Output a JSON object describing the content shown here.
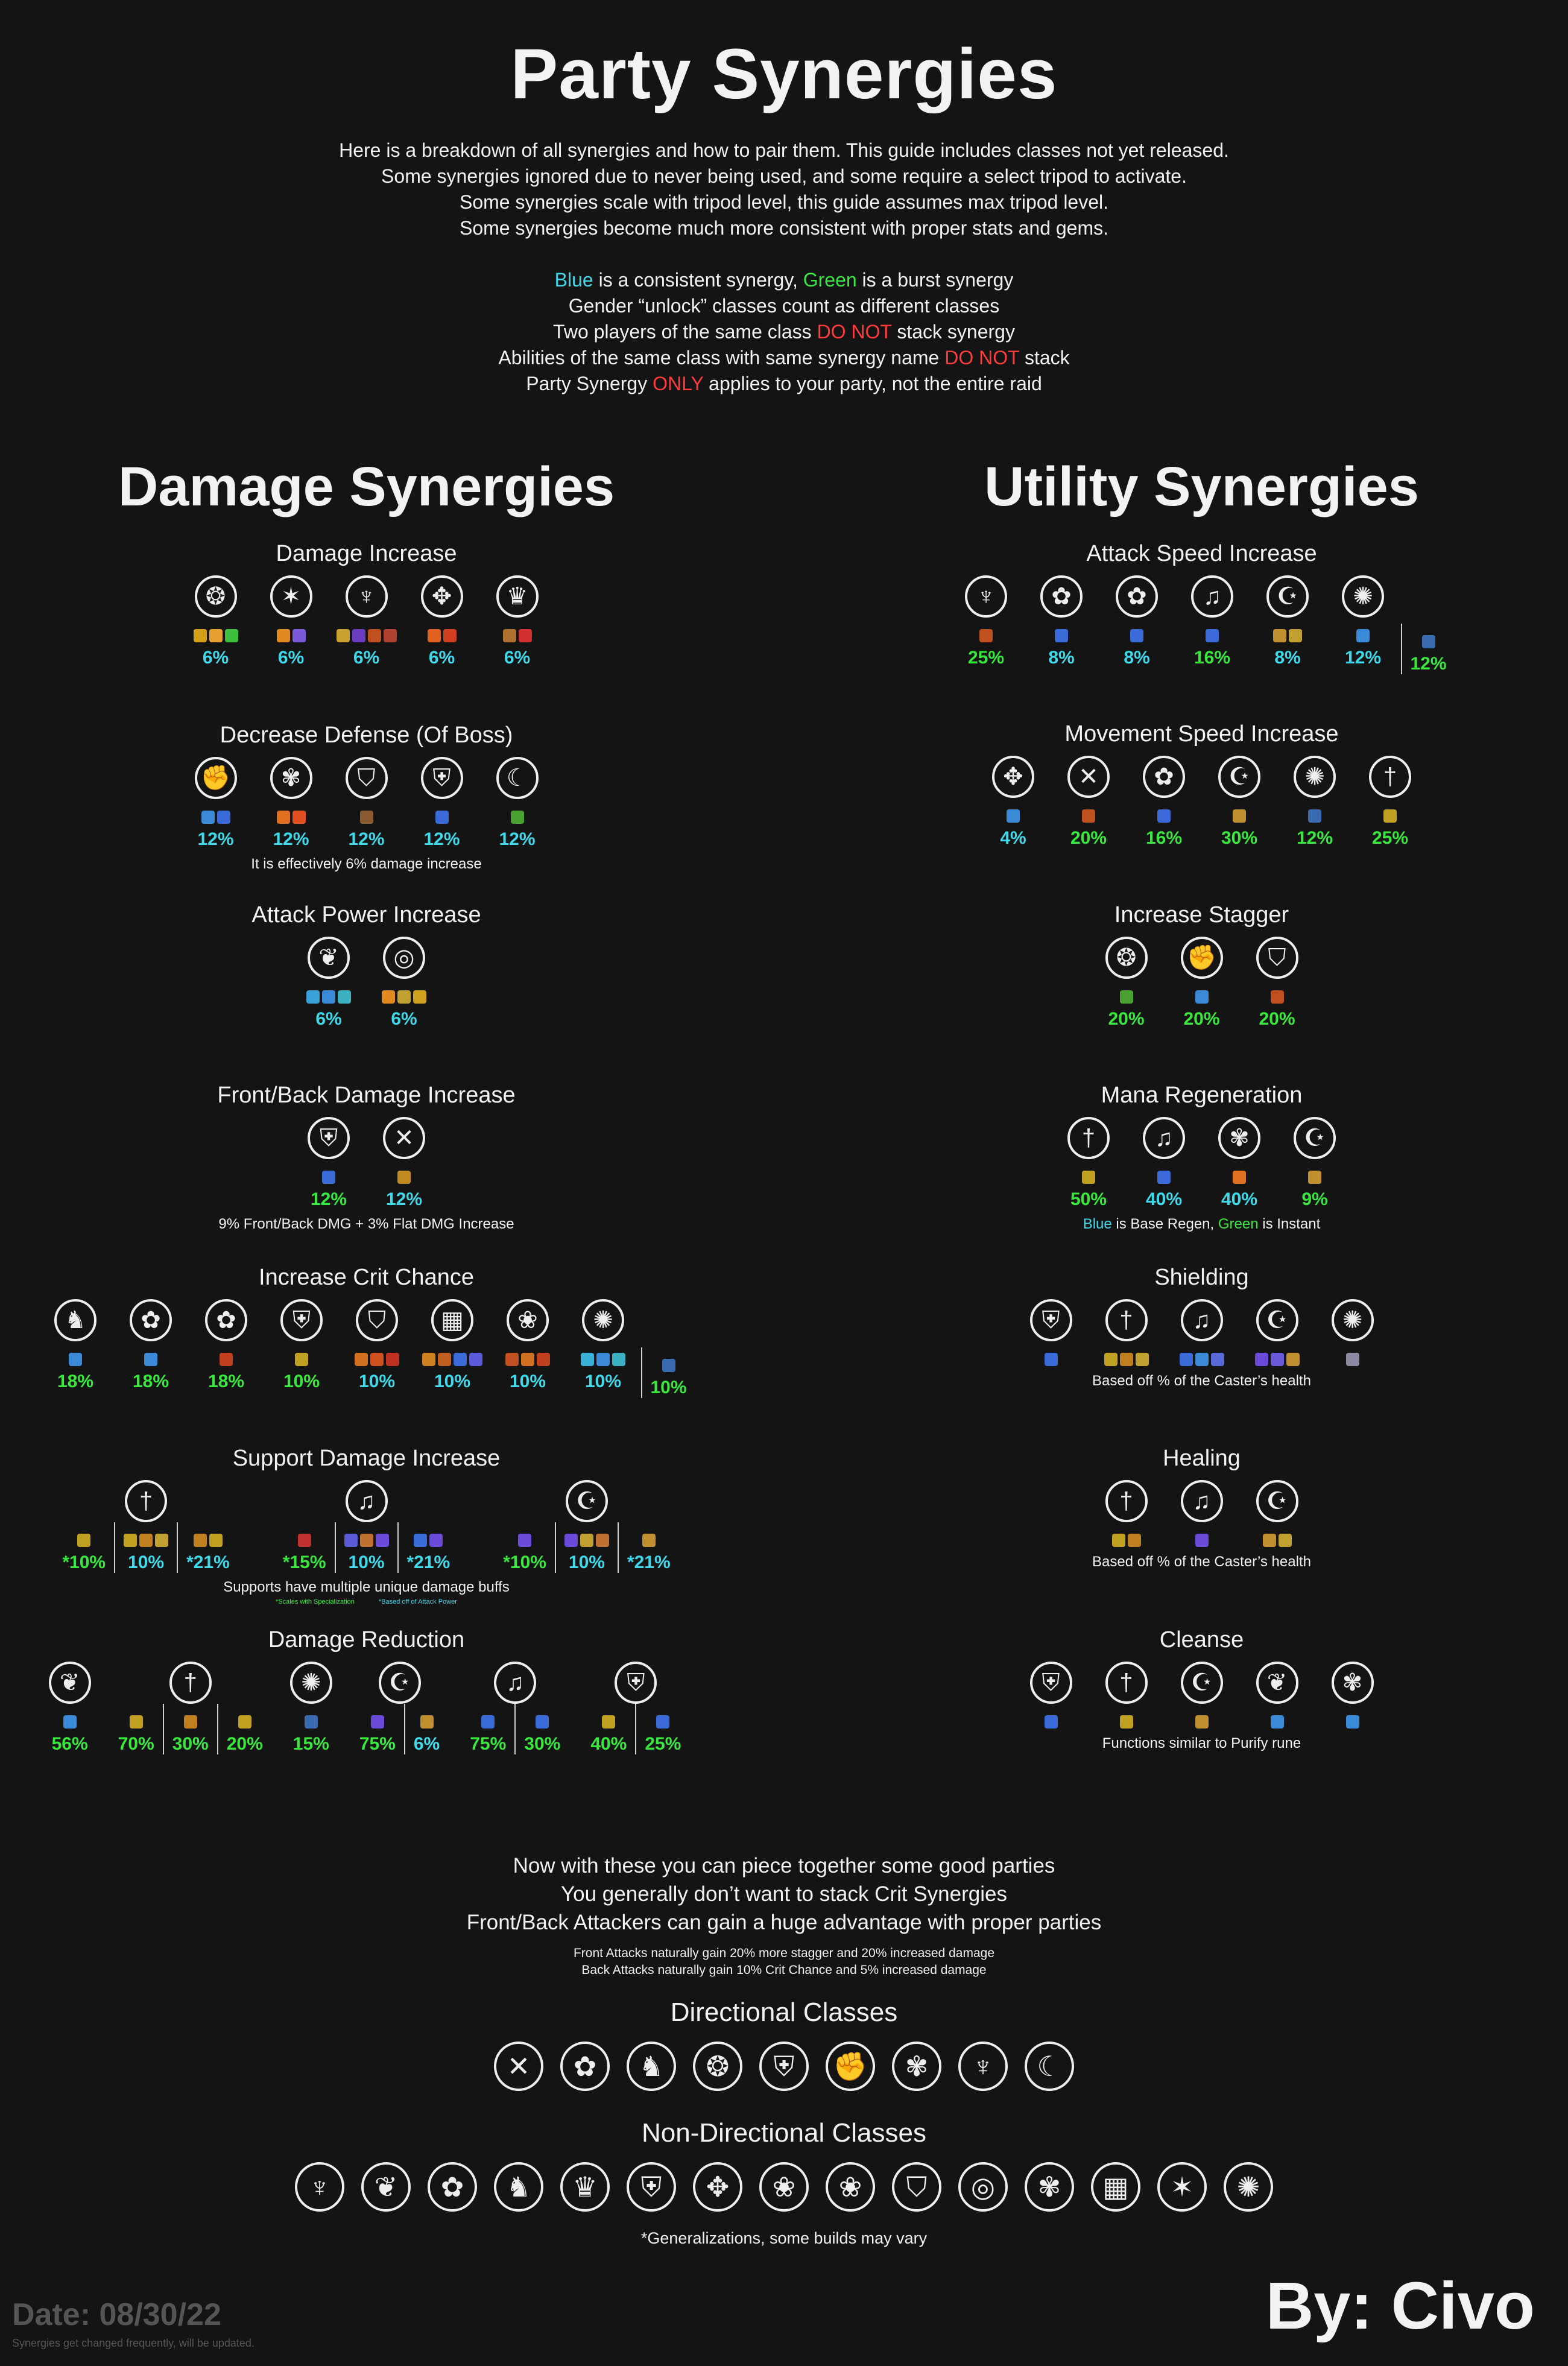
{
  "title": "Party Synergies",
  "intro_lines": [
    "Here is a breakdown of all synergies and how to pair them. This guide includes classes not yet released.",
    "Some synergies ignored due to never being used, and some require a select tripod to activate.",
    "Some synergies scale with tripod level, this guide assumes max tripod level.",
    "Some synergies become much more consistent with proper stats and gems."
  ],
  "legend": {
    "blue_word": "Blue",
    "blue_rest": " is a consistent synergy, ",
    "green_word": "Green",
    "green_rest": " is a burst synergy",
    "line2": "Gender “unlock” classes count as different classes",
    "line3_a": "Two players of the same class ",
    "line3_red": "DO NOT",
    "line3_b": " stack synergy",
    "line4_a": "Abilities of the same class with same synergy name ",
    "line4_red": "DO NOT",
    "line4_b": " stack",
    "line5_a": "Party Synergy ",
    "line5_red": "ONLY",
    "line5_b": " applies to your party, not the entire raid"
  },
  "colors": {
    "blue": "#3ed9ea",
    "green": "#39e83d",
    "red": "#ff3b3b",
    "background": "#141414"
  },
  "damage_heading": "Damage Synergies",
  "utility_heading": "Utility Synergies",
  "sections": {
    "dmg_inc": {
      "title": "Damage Increase",
      "items": [
        {
          "icon": "dragon-emblem-icon",
          "pct": "6%",
          "c": "blue",
          "sq": [
            "#d4a017",
            "#e8a030",
            "#3cbf3c"
          ]
        },
        {
          "icon": "star-sigil-icon",
          "pct": "6%",
          "c": "blue",
          "sq": [
            "#e08a20",
            "#7a5ad8"
          ]
        },
        {
          "icon": "bat-wing-icon",
          "pct": "6%",
          "c": "blue",
          "sq": [
            "#c9a030",
            "#6a3cc0",
            "#c05020",
            "#b04030"
          ]
        },
        {
          "icon": "winged-blade-icon",
          "pct": "6%",
          "c": "blue",
          "sq": [
            "#e06020",
            "#d04020"
          ]
        },
        {
          "icon": "spire-crown-icon",
          "pct": "6%",
          "c": "blue",
          "sq": [
            "#b07030",
            "#d03030"
          ]
        }
      ]
    },
    "dec_def": {
      "title": "Decrease Defense (Of Boss)",
      "note": "It is effectively 6% damage increase",
      "items": [
        {
          "icon": "gauntlet-icon",
          "pct": "12%",
          "c": "blue",
          "sq": [
            "#3a8ad8",
            "#3a6ad8"
          ]
        },
        {
          "icon": "ornate-mask-icon",
          "pct": "12%",
          "c": "blue",
          "sq": [
            "#e07020",
            "#e05020"
          ]
        },
        {
          "icon": "horned-shield-icon",
          "pct": "12%",
          "c": "blue",
          "sq": [
            "#8a5a30"
          ]
        },
        {
          "icon": "winged-shield-icon",
          "pct": "12%",
          "c": "blue",
          "sq": [
            "#3a6ad8"
          ]
        },
        {
          "icon": "scythe-icon",
          "pct": "12%",
          "c": "blue",
          "sq": [
            "#4aa030"
          ]
        }
      ]
    },
    "atk_pow": {
      "title": "Attack Power Increase",
      "items": [
        {
          "icon": "leaf-swirl-icon",
          "pct": "6%",
          "c": "blue",
          "sq": [
            "#3aa0d8",
            "#3a8ad8",
            "#3ab0c0"
          ]
        },
        {
          "icon": "spiral-arc-icon",
          "pct": "6%",
          "c": "blue",
          "sq": [
            "#e08a20",
            "#c0a030",
            "#d0a020"
          ]
        }
      ]
    },
    "front_back": {
      "title": "Front/Back Damage Increase",
      "note": "9% Front/Back DMG + 3% Flat DMG Increase",
      "items": [
        {
          "icon": "winged-shield-icon",
          "pct": "12%",
          "c": "green",
          "sq": [
            "#3a6ad8"
          ]
        },
        {
          "icon": "crossed-blades-icon",
          "pct": "12%",
          "c": "blue",
          "sq": [
            "#c08a20"
          ]
        }
      ]
    },
    "crit": {
      "title": "Increase Crit Chance",
      "items": [
        {
          "icon": "wolf-head-icon",
          "pct": "18%",
          "c": "green",
          "sq": [
            "#3a8ad8"
          ]
        },
        {
          "icon": "rose-medallion-icon",
          "pct": "18%",
          "c": "green",
          "sq": [
            "#3a8ad8"
          ]
        },
        {
          "icon": "rose-medallion-icon",
          "pct": "18%",
          "c": "green",
          "sq": [
            "#c04020"
          ]
        },
        {
          "icon": "winged-shield-icon",
          "pct": "10%",
          "c": "green",
          "sq": [
            "#c0a020"
          ]
        },
        {
          "icon": "horned-shield-icon",
          "pct": "10%",
          "c": "blue",
          "sq": [
            "#d07020",
            "#d05020",
            "#c03020"
          ]
        },
        {
          "icon": "checker-shield-icon",
          "pct": "10%",
          "c": "blue",
          "sq": [
            "#d08020",
            "#c06020",
            "#3a6ad8",
            "#5a5ad8"
          ]
        },
        {
          "icon": "lotus-crest-icon",
          "pct": "10%",
          "c": "blue",
          "sq": [
            "#c05020",
            "#d07020",
            "#c04020"
          ]
        },
        {
          "icon": "tornado-icon",
          "pct": "10%",
          "c": "blue",
          "sq": [
            "#3ab0d8",
            "#3a8ad8",
            "#3ab0c0"
          ]
        },
        {
          "icon": "tornado-icon",
          "pct": "10%",
          "c": "green",
          "sq": [
            "#3a6ab0"
          ],
          "sep": true,
          "noicon": true
        }
      ]
    },
    "support_dmg": {
      "title": "Support Damage Increase",
      "note": "Supports have multiple unique damage buffs",
      "tiny_green": "*Scales with Specialization",
      "tiny_blue": "*Based off of Attack Power",
      "groups": [
        {
          "icon": "winged-sword-icon",
          "subs": [
            {
              "pct": "*10%",
              "c": "green",
              "sq": [
                "#c0a020"
              ]
            },
            {
              "pct": "10%",
              "c": "blue",
              "sq": [
                "#c0a020",
                "#c08020",
                "#c0a030"
              ]
            },
            {
              "pct": "*21%",
              "c": "blue",
              "sq": [
                "#c08020",
                "#c0a020"
              ]
            }
          ]
        },
        {
          "icon": "lyre-icon",
          "subs": [
            {
              "pct": "*15%",
              "c": "green",
              "sq": [
                "#c03030"
              ]
            },
            {
              "pct": "10%",
              "c": "blue",
              "sq": [
                "#5a5ad8",
                "#c07030",
                "#6a4ad8"
              ]
            },
            {
              "pct": "*21%",
              "c": "blue",
              "sq": [
                "#3a6ad8",
                "#6a4ad8"
              ]
            }
          ]
        },
        {
          "icon": "crescent-q-icon",
          "subs": [
            {
              "pct": "*10%",
              "c": "green",
              "sq": [
                "#6a4ad8"
              ]
            },
            {
              "pct": "10%",
              "c": "blue",
              "sq": [
                "#6a4ad8",
                "#c0a030",
                "#c07030"
              ]
            },
            {
              "pct": "*21%",
              "c": "blue",
              "sq": [
                "#c09030"
              ]
            }
          ]
        }
      ]
    },
    "dmg_red": {
      "title": "Damage Reduction",
      "groups": [
        {
          "icon": "leaf-swirl-icon",
          "subs": [
            {
              "pct": "56%",
              "c": "green",
              "sq": [
                "#3a8ad8"
              ]
            }
          ]
        },
        {
          "icon": "winged-sword-icon",
          "subs": [
            {
              "pct": "70%",
              "c": "green",
              "sq": [
                "#c0a020"
              ]
            },
            {
              "pct": "30%",
              "c": "green",
              "sq": [
                "#c08020"
              ]
            },
            {
              "pct": "20%",
              "c": "green",
              "sq": [
                "#c0a020"
              ]
            }
          ]
        },
        {
          "icon": "tornado-icon",
          "subs": [
            {
              "pct": "15%",
              "c": "green",
              "sq": [
                "#3a6ab0"
              ]
            }
          ]
        },
        {
          "icon": "crescent-q-icon",
          "subs": [
            {
              "pct": "75%",
              "c": "green",
              "sq": [
                "#6a4ad8"
              ]
            },
            {
              "pct": "6%",
              "c": "blue",
              "sq": [
                "#c09030"
              ]
            }
          ]
        },
        {
          "icon": "lyre-icon",
          "subs": [
            {
              "pct": "75%",
              "c": "green",
              "sq": [
                "#3a6ad8"
              ]
            },
            {
              "pct": "30%",
              "c": "green",
              "sq": [
                "#3a6ad8"
              ]
            }
          ]
        },
        {
          "icon": "winged-shield-icon",
          "subs": [
            {
              "pct": "40%",
              "c": "green",
              "sq": [
                "#c0a020"
              ]
            },
            {
              "pct": "25%",
              "c": "green",
              "sq": [
                "#3a6ad8"
              ]
            }
          ]
        }
      ]
    },
    "atk_spd": {
      "title": "Attack Speed Increase",
      "items": [
        {
          "icon": "bat-wing-icon",
          "pct": "25%",
          "c": "green",
          "sq": [
            "#c05020"
          ]
        },
        {
          "icon": "rose-medallion-icon",
          "pct": "8%",
          "c": "blue",
          "sq": [
            "#3a6ad8"
          ]
        },
        {
          "icon": "rose-medallion-icon",
          "pct": "8%",
          "c": "blue",
          "sq": [
            "#3a6ad8"
          ]
        },
        {
          "icon": "lyre-icon",
          "pct": "16%",
          "c": "green",
          "sq": [
            "#3a6ad8"
          ]
        },
        {
          "icon": "crescent-q-icon",
          "pct": "8%",
          "c": "blue",
          "sq": [
            "#c09030",
            "#c0a030"
          ]
        },
        {
          "icon": "tornado-icon",
          "pct": "12%",
          "c": "blue",
          "sq": [
            "#3a8ad8"
          ]
        },
        {
          "icon": "tornado-icon",
          "pct": "12%",
          "c": "green",
          "sq": [
            "#3a6ab0"
          ],
          "sep": true,
          "noicon": true
        }
      ]
    },
    "mov_spd": {
      "title": "Movement Speed Increase",
      "items": [
        {
          "icon": "winged-blade-icon",
          "pct": "4%",
          "c": "blue",
          "sq": [
            "#3a8ad8"
          ]
        },
        {
          "icon": "crossed-blades-icon",
          "pct": "20%",
          "c": "green",
          "sq": [
            "#c05020"
          ]
        },
        {
          "icon": "rose-medallion-icon",
          "pct": "16%",
          "c": "green",
          "sq": [
            "#3a6ad8"
          ]
        },
        {
          "icon": "crescent-q-icon",
          "pct": "30%",
          "c": "green",
          "sq": [
            "#c09030"
          ]
        },
        {
          "icon": "tornado-icon",
          "pct": "12%",
          "c": "green",
          "sq": [
            "#3a6ab0"
          ]
        },
        {
          "icon": "winged-sword-icon",
          "pct": "25%",
          "c": "green",
          "sq": [
            "#c0a020"
          ]
        }
      ]
    },
    "stagger": {
      "title": "Increase Stagger",
      "items": [
        {
          "icon": "dragon-emblem-icon",
          "pct": "20%",
          "c": "green",
          "sq": [
            "#4aa030"
          ]
        },
        {
          "icon": "gauntlet-icon",
          "pct": "20%",
          "c": "green",
          "sq": [
            "#3a8ad8"
          ]
        },
        {
          "icon": "horned-shield-icon",
          "pct": "20%",
          "c": "green",
          "sq": [
            "#c05020"
          ]
        }
      ]
    },
    "mana": {
      "title": "Mana Regeneration",
      "note_blue": "Blue",
      "note_mid": " is Base Regen, ",
      "note_green": "Green",
      "note_end": " is Instant",
      "items": [
        {
          "icon": "winged-sword-icon",
          "pct": "50%",
          "c": "green",
          "sq": [
            "#c0a020"
          ]
        },
        {
          "icon": "lyre-icon",
          "pct": "40%",
          "c": "blue",
          "sq": [
            "#3a6ad8"
          ]
        },
        {
          "icon": "ornate-mask-icon",
          "pct": "40%",
          "c": "blue",
          "sq": [
            "#e07020"
          ]
        },
        {
          "icon": "crescent-q-icon",
          "pct": "9%",
          "c": "green",
          "sq": [
            "#c09030"
          ]
        }
      ]
    },
    "shield": {
      "title": "Shielding",
      "note": "Based off % of the Caster’s health",
      "items": [
        {
          "icon": "winged-shield-icon",
          "sq": [
            "#3a6ad8"
          ]
        },
        {
          "icon": "winged-sword-icon",
          "sq": [
            "#c0a020",
            "#c08020",
            "#c0a030"
          ]
        },
        {
          "icon": "lyre-icon",
          "sq": [
            "#3a6ad8",
            "#3a8ad8",
            "#5a6ad8"
          ]
        },
        {
          "icon": "crescent-q-icon",
          "sq": [
            "#6a4ad8",
            "#6a5ad8",
            "#c09030"
          ]
        },
        {
          "icon": "tornado-icon",
          "sq": [
            "#8a8aa0"
          ]
        }
      ]
    },
    "heal": {
      "title": "Healing",
      "note": "Based off % of the Caster’s health",
      "items": [
        {
          "icon": "winged-sword-icon",
          "sq": [
            "#c0a020",
            "#c08020"
          ]
        },
        {
          "icon": "lyre-icon",
          "sq": [
            "#6a4ad8"
          ]
        },
        {
          "icon": "crescent-q-icon",
          "sq": [
            "#c09030",
            "#c0a030"
          ]
        }
      ]
    },
    "cleanse": {
      "title": "Cleanse",
      "note": "Functions similar to Purify rune",
      "items": [
        {
          "icon": "winged-shield-icon",
          "sq": [
            "#3a6ad8"
          ]
        },
        {
          "icon": "winged-sword-icon",
          "sq": [
            "#c0a020"
          ]
        },
        {
          "icon": "crescent-q-icon",
          "sq": [
            "#c09030"
          ]
        },
        {
          "icon": "leaf-swirl-icon",
          "sq": [
            "#3a8ad8"
          ]
        },
        {
          "icon": "ornate-mask-icon",
          "sq": [
            "#3a8ad8"
          ]
        }
      ]
    }
  },
  "footer": {
    "lines": [
      "Now with these you can piece together some good parties",
      "You generally don’t want to stack Crit Synergies",
      "Front/Back Attackers can gain a huge advantage with proper parties"
    ],
    "small_lines": [
      "Front Attacks naturally gain 20% more stagger and 20% increased damage",
      "Back Attacks naturally gain 10% Crit Chance and 5% increased damage"
    ],
    "directional_title": "Directional Classes",
    "directional_icons": [
      "crossed-blades-icon",
      "rose-medallion-icon",
      "wolf-head-icon",
      "dragon-emblem-icon",
      "winged-shield-icon",
      "gauntlet-icon",
      "ornate-mask-icon",
      "bat-wing-icon",
      "scythe-icon"
    ],
    "nondirectional_title": "Non-Directional Classes",
    "nondirectional_icons": [
      "bat-wing-icon",
      "leaf-swirl-icon",
      "rose-medallion-icon",
      "wolf-head-icon",
      "spire-crown-icon",
      "winged-shield-icon",
      "winged-blade-icon",
      "lotus-crest-icon",
      "lotus-crest-icon",
      "horned-shield-icon",
      "spiral-arc-icon",
      "ornate-mask-icon",
      "checker-shield-icon",
      "star-sigil-icon",
      "tornado-icon"
    ],
    "generalization_note": "*Generalizations, some builds may vary"
  },
  "byline": "By: Civo",
  "date": "Date: 08/30/22",
  "date_note": "Synergies get changed frequently, will be updated."
}
